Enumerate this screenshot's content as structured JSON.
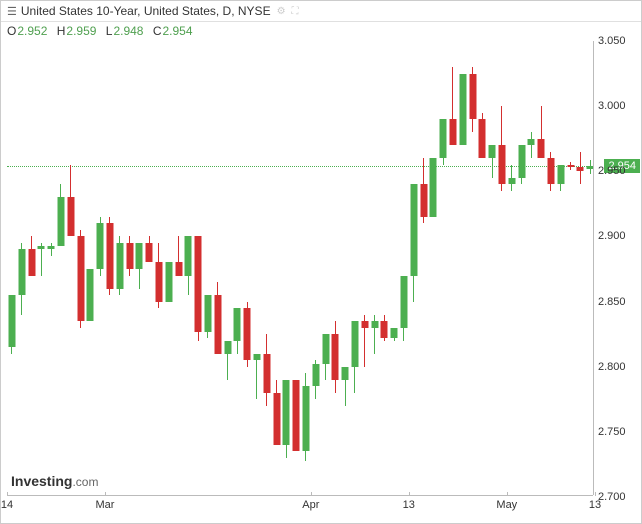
{
  "header": {
    "title": "United States 10-Year, United States, D, NYSE",
    "icon": "chart-bars-icon"
  },
  "ohlc": {
    "o_label": "O",
    "o_value": "2.952",
    "h_label": "H",
    "h_value": "2.959",
    "l_label": "L",
    "l_value": "2.948",
    "c_label": "C",
    "c_value": "2.954",
    "value_color": "#50a050"
  },
  "chart": {
    "type": "candlestick",
    "background_color": "#ffffff",
    "border_color": "#cccccc",
    "axis_color": "#bbbbbb",
    "tick_fontsize": 11,
    "tick_color": "#333333",
    "up_color": "#4caf50",
    "down_color": "#d32f2f",
    "candle_width": 7,
    "ylim": [
      2.7,
      3.05
    ],
    "yticks": [
      2.7,
      2.75,
      2.8,
      2.85,
      2.9,
      2.95,
      3.0,
      3.05
    ],
    "ytick_labels": [
      "2.700",
      "2.750",
      "2.800",
      "2.850",
      "2.900",
      "2.950",
      "3.000",
      "3.050"
    ],
    "x_count": 60,
    "xticks": [
      0,
      10,
      31,
      41,
      51,
      60
    ],
    "xtick_labels": [
      "14",
      "Mar",
      "Apr",
      "13",
      "May",
      "13"
    ],
    "current_price": 2.954,
    "current_price_label": "2.954",
    "price_line_color": "#4caf50",
    "price_flag_bg": "#4caf50",
    "candles": [
      {
        "o": 2.815,
        "h": 2.855,
        "l": 2.81,
        "c": 2.855,
        "up": true
      },
      {
        "o": 2.855,
        "h": 2.895,
        "l": 2.84,
        "c": 2.89,
        "up": true
      },
      {
        "o": 2.89,
        "h": 2.9,
        "l": 2.87,
        "c": 2.87,
        "up": false
      },
      {
        "o": 2.89,
        "h": 2.895,
        "l": 2.87,
        "c": 2.893,
        "up": true
      },
      {
        "o": 2.89,
        "h": 2.895,
        "l": 2.885,
        "c": 2.893,
        "up": true
      },
      {
        "o": 2.893,
        "h": 2.94,
        "l": 2.893,
        "c": 2.93,
        "up": true
      },
      {
        "o": 2.93,
        "h": 2.955,
        "l": 2.9,
        "c": 2.9,
        "up": false
      },
      {
        "o": 2.9,
        "h": 2.905,
        "l": 2.83,
        "c": 2.835,
        "up": false
      },
      {
        "o": 2.835,
        "h": 2.875,
        "l": 2.835,
        "c": 2.875,
        "up": true
      },
      {
        "o": 2.875,
        "h": 2.915,
        "l": 2.87,
        "c": 2.91,
        "up": true
      },
      {
        "o": 2.91,
        "h": 2.915,
        "l": 2.855,
        "c": 2.86,
        "up": false
      },
      {
        "o": 2.86,
        "h": 2.9,
        "l": 2.855,
        "c": 2.895,
        "up": true
      },
      {
        "o": 2.895,
        "h": 2.9,
        "l": 2.87,
        "c": 2.875,
        "up": false
      },
      {
        "o": 2.875,
        "h": 2.895,
        "l": 2.86,
        "c": 2.895,
        "up": true
      },
      {
        "o": 2.895,
        "h": 2.9,
        "l": 2.88,
        "c": 2.88,
        "up": false
      },
      {
        "o": 2.88,
        "h": 2.895,
        "l": 2.845,
        "c": 2.85,
        "up": false
      },
      {
        "o": 2.85,
        "h": 2.88,
        "l": 2.85,
        "c": 2.88,
        "up": true
      },
      {
        "o": 2.88,
        "h": 2.9,
        "l": 2.87,
        "c": 2.87,
        "up": false
      },
      {
        "o": 2.87,
        "h": 2.9,
        "l": 2.855,
        "c": 2.9,
        "up": true
      },
      {
        "o": 2.9,
        "h": 2.9,
        "l": 2.82,
        "c": 2.827,
        "up": false
      },
      {
        "o": 2.827,
        "h": 2.855,
        "l": 2.822,
        "c": 2.855,
        "up": true
      },
      {
        "o": 2.855,
        "h": 2.865,
        "l": 2.81,
        "c": 2.81,
        "up": false
      },
      {
        "o": 2.81,
        "h": 2.82,
        "l": 2.79,
        "c": 2.82,
        "up": true
      },
      {
        "o": 2.82,
        "h": 2.845,
        "l": 2.81,
        "c": 2.845,
        "up": true
      },
      {
        "o": 2.845,
        "h": 2.85,
        "l": 2.8,
        "c": 2.805,
        "up": false
      },
      {
        "o": 2.805,
        "h": 2.81,
        "l": 2.775,
        "c": 2.81,
        "up": true
      },
      {
        "o": 2.81,
        "h": 2.825,
        "l": 2.77,
        "c": 2.78,
        "up": false
      },
      {
        "o": 2.78,
        "h": 2.79,
        "l": 2.74,
        "c": 2.74,
        "up": false
      },
      {
        "o": 2.74,
        "h": 2.79,
        "l": 2.73,
        "c": 2.79,
        "up": true
      },
      {
        "o": 2.79,
        "h": 2.79,
        "l": 2.735,
        "c": 2.735,
        "up": false
      },
      {
        "o": 2.735,
        "h": 2.795,
        "l": 2.728,
        "c": 2.785,
        "up": true
      },
      {
        "o": 2.785,
        "h": 2.805,
        "l": 2.775,
        "c": 2.802,
        "up": true
      },
      {
        "o": 2.802,
        "h": 2.825,
        "l": 2.79,
        "c": 2.825,
        "up": true
      },
      {
        "o": 2.825,
        "h": 2.835,
        "l": 2.78,
        "c": 2.79,
        "up": false
      },
      {
        "o": 2.79,
        "h": 2.8,
        "l": 2.77,
        "c": 2.8,
        "up": true
      },
      {
        "o": 2.8,
        "h": 2.835,
        "l": 2.78,
        "c": 2.835,
        "up": true
      },
      {
        "o": 2.835,
        "h": 2.84,
        "l": 2.8,
        "c": 2.83,
        "up": false
      },
      {
        "o": 2.83,
        "h": 2.84,
        "l": 2.81,
        "c": 2.835,
        "up": true
      },
      {
        "o": 2.835,
        "h": 2.84,
        "l": 2.82,
        "c": 2.822,
        "up": false
      },
      {
        "o": 2.822,
        "h": 2.83,
        "l": 2.82,
        "c": 2.83,
        "up": true
      },
      {
        "o": 2.83,
        "h": 2.87,
        "l": 2.82,
        "c": 2.87,
        "up": true
      },
      {
        "o": 2.87,
        "h": 2.94,
        "l": 2.85,
        "c": 2.94,
        "up": true
      },
      {
        "o": 2.94,
        "h": 2.96,
        "l": 2.91,
        "c": 2.915,
        "up": false
      },
      {
        "o": 2.915,
        "h": 2.96,
        "l": 2.915,
        "c": 2.96,
        "up": true
      },
      {
        "o": 2.96,
        "h": 2.99,
        "l": 2.955,
        "c": 2.99,
        "up": true
      },
      {
        "o": 2.99,
        "h": 3.03,
        "l": 2.97,
        "c": 2.97,
        "up": false
      },
      {
        "o": 2.97,
        "h": 3.025,
        "l": 2.97,
        "c": 3.025,
        "up": true
      },
      {
        "o": 3.025,
        "h": 3.03,
        "l": 2.98,
        "c": 2.99,
        "up": false
      },
      {
        "o": 2.99,
        "h": 2.995,
        "l": 2.96,
        "c": 2.96,
        "up": false
      },
      {
        "o": 2.96,
        "h": 2.97,
        "l": 2.945,
        "c": 2.97,
        "up": true
      },
      {
        "o": 2.97,
        "h": 3.0,
        "l": 2.935,
        "c": 2.94,
        "up": false
      },
      {
        "o": 2.94,
        "h": 2.955,
        "l": 2.935,
        "c": 2.945,
        "up": true
      },
      {
        "o": 2.945,
        "h": 2.97,
        "l": 2.94,
        "c": 2.97,
        "up": true
      },
      {
        "o": 2.97,
        "h": 2.98,
        "l": 2.96,
        "c": 2.975,
        "up": true
      },
      {
        "o": 2.975,
        "h": 3.0,
        "l": 2.96,
        "c": 2.96,
        "up": false
      },
      {
        "o": 2.96,
        "h": 2.965,
        "l": 2.935,
        "c": 2.94,
        "up": false
      },
      {
        "o": 2.94,
        "h": 2.955,
        "l": 2.935,
        "c": 2.955,
        "up": true
      },
      {
        "o": 2.955,
        "h": 2.957,
        "l": 2.951,
        "c": 2.953,
        "up": false
      },
      {
        "o": 2.953,
        "h": 2.965,
        "l": 2.94,
        "c": 2.95,
        "up": false
      },
      {
        "o": 2.952,
        "h": 2.959,
        "l": 2.948,
        "c": 2.954,
        "up": true
      }
    ]
  },
  "watermark": {
    "brand": "Investing",
    "suffix": ".com"
  }
}
